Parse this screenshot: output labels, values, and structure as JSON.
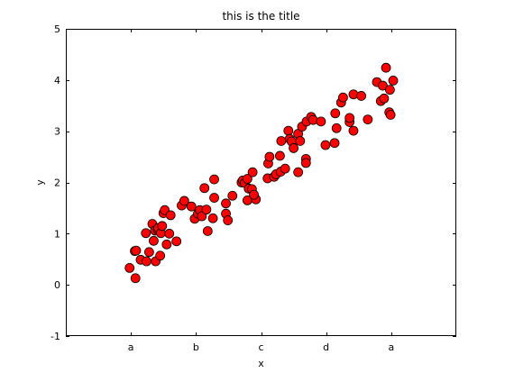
{
  "chart_data": {
    "type": "scatter",
    "title": "this is the title",
    "xlabel": "x",
    "ylabel": "y",
    "xlim": [
      -1,
      5
    ],
    "ylim": [
      -1,
      5
    ],
    "x_ticks": [
      {
        "value": 0,
        "label": "a"
      },
      {
        "value": 1,
        "label": "b"
      },
      {
        "value": 2,
        "label": "c"
      },
      {
        "value": 3,
        "label": "d"
      },
      {
        "value": 4,
        "label": "a"
      }
    ],
    "y_ticks": [
      {
        "value": -1,
        "label": "-1"
      },
      {
        "value": 0,
        "label": "0"
      },
      {
        "value": 1,
        "label": "1"
      },
      {
        "value": 2,
        "label": "2"
      },
      {
        "value": 3,
        "label": "3"
      },
      {
        "value": 4,
        "label": "4"
      },
      {
        "value": 5,
        "label": "5"
      }
    ],
    "grid": false,
    "legend": "none",
    "marker_color": "#ff0000",
    "marker_edge_color": "#000000",
    "points": [
      {
        "x": -0.02,
        "y": 0.33
      },
      {
        "x": 0.06,
        "y": 0.66
      },
      {
        "x": 0.08,
        "y": 0.67
      },
      {
        "x": 0.07,
        "y": 0.13
      },
      {
        "x": 0.15,
        "y": 0.49
      },
      {
        "x": 0.23,
        "y": 1.01
      },
      {
        "x": 0.24,
        "y": 0.46
      },
      {
        "x": 0.28,
        "y": 0.64
      },
      {
        "x": 0.33,
        "y": 1.19
      },
      {
        "x": 0.35,
        "y": 0.86
      },
      {
        "x": 0.37,
        "y": 1.06
      },
      {
        "x": 0.38,
        "y": 0.46
      },
      {
        "x": 0.41,
        "y": 1.08
      },
      {
        "x": 0.42,
        "y": 1.11
      },
      {
        "x": 0.45,
        "y": 0.57
      },
      {
        "x": 0.46,
        "y": 1.01
      },
      {
        "x": 0.48,
        "y": 1.15
      },
      {
        "x": 0.5,
        "y": 1.4
      },
      {
        "x": 0.52,
        "y": 1.46
      },
      {
        "x": 0.55,
        "y": 0.79
      },
      {
        "x": 0.59,
        "y": 1.0
      },
      {
        "x": 0.61,
        "y": 1.36
      },
      {
        "x": 0.7,
        "y": 0.85
      },
      {
        "x": 0.78,
        "y": 1.55
      },
      {
        "x": 0.82,
        "y": 1.64
      },
      {
        "x": 0.93,
        "y": 1.53
      },
      {
        "x": 0.98,
        "y": 1.29
      },
      {
        "x": 1.03,
        "y": 1.39
      },
      {
        "x": 1.06,
        "y": 1.46
      },
      {
        "x": 1.09,
        "y": 1.34
      },
      {
        "x": 1.13,
        "y": 1.89
      },
      {
        "x": 1.16,
        "y": 1.47
      },
      {
        "x": 1.18,
        "y": 1.05
      },
      {
        "x": 1.26,
        "y": 1.3
      },
      {
        "x": 1.28,
        "y": 1.7
      },
      {
        "x": 1.28,
        "y": 2.06
      },
      {
        "x": 1.46,
        "y": 1.59
      },
      {
        "x": 1.46,
        "y": 1.39
      },
      {
        "x": 1.49,
        "y": 1.26
      },
      {
        "x": 1.56,
        "y": 1.74
      },
      {
        "x": 1.7,
        "y": 2.0
      },
      {
        "x": 1.72,
        "y": 2.04
      },
      {
        "x": 1.75,
        "y": 1.99
      },
      {
        "x": 1.79,
        "y": 2.07
      },
      {
        "x": 1.81,
        "y": 1.88
      },
      {
        "x": 1.79,
        "y": 1.65
      },
      {
        "x": 1.86,
        "y": 1.87
      },
      {
        "x": 1.87,
        "y": 2.2
      },
      {
        "x": 1.92,
        "y": 1.67
      },
      {
        "x": 1.89,
        "y": 1.76
      },
      {
        "x": 2.1,
        "y": 2.08
      },
      {
        "x": 2.11,
        "y": 2.37
      },
      {
        "x": 2.13,
        "y": 2.5
      },
      {
        "x": 2.2,
        "y": 2.11
      },
      {
        "x": 2.23,
        "y": 2.16
      },
      {
        "x": 2.29,
        "y": 2.52
      },
      {
        "x": 2.3,
        "y": 2.21
      },
      {
        "x": 2.31,
        "y": 2.81
      },
      {
        "x": 2.37,
        "y": 2.27
      },
      {
        "x": 2.42,
        "y": 3.01
      },
      {
        "x": 2.44,
        "y": 2.85
      },
      {
        "x": 2.47,
        "y": 2.8
      },
      {
        "x": 2.5,
        "y": 2.67
      },
      {
        "x": 2.57,
        "y": 2.2
      },
      {
        "x": 2.57,
        "y": 2.95
      },
      {
        "x": 2.6,
        "y": 2.81
      },
      {
        "x": 2.63,
        "y": 3.09
      },
      {
        "x": 2.69,
        "y": 2.46
      },
      {
        "x": 2.69,
        "y": 2.38
      },
      {
        "x": 2.7,
        "y": 3.19
      },
      {
        "x": 2.77,
        "y": 3.28
      },
      {
        "x": 2.8,
        "y": 3.22
      },
      {
        "x": 2.92,
        "y": 3.19
      },
      {
        "x": 2.99,
        "y": 2.73
      },
      {
        "x": 3.13,
        "y": 2.77
      },
      {
        "x": 3.14,
        "y": 3.35
      },
      {
        "x": 3.16,
        "y": 3.06
      },
      {
        "x": 3.23,
        "y": 3.56
      },
      {
        "x": 3.26,
        "y": 3.66
      },
      {
        "x": 3.36,
        "y": 3.18
      },
      {
        "x": 3.36,
        "y": 3.26
      },
      {
        "x": 3.42,
        "y": 3.72
      },
      {
        "x": 3.42,
        "y": 3.01
      },
      {
        "x": 3.54,
        "y": 3.69
      },
      {
        "x": 3.64,
        "y": 3.23
      },
      {
        "x": 3.78,
        "y": 3.96
      },
      {
        "x": 3.84,
        "y": 3.59
      },
      {
        "x": 3.87,
        "y": 3.89
      },
      {
        "x": 3.89,
        "y": 3.64
      },
      {
        "x": 3.92,
        "y": 4.24
      },
      {
        "x": 3.97,
        "y": 3.37
      },
      {
        "x": 3.98,
        "y": 3.81
      },
      {
        "x": 3.99,
        "y": 3.32
      },
      {
        "x": 4.03,
        "y": 3.99
      }
    ]
  }
}
